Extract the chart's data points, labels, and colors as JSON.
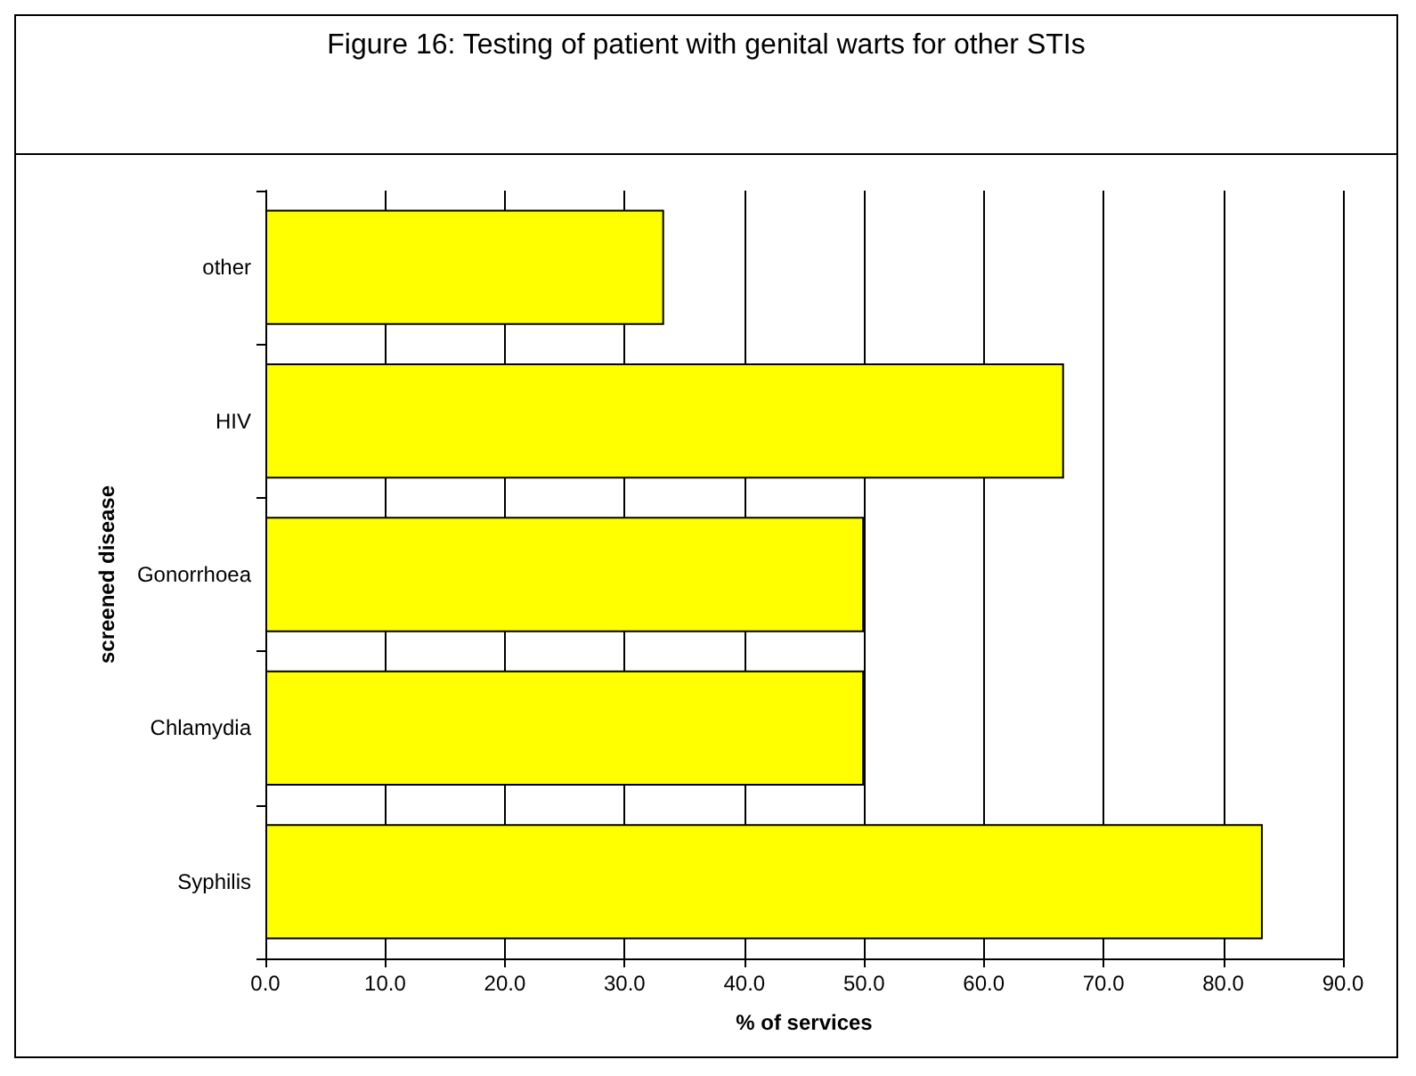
{
  "chart_data": {
    "type": "bar",
    "orientation": "horizontal",
    "title": "Figure 16: Testing of patient with genital warts for other STIs",
    "xlabel": "% of services",
    "ylabel": "screened disease",
    "categories": [
      "other",
      "HIV",
      "Gonorrhoea",
      "Chlamydia",
      "Syphilis"
    ],
    "values": [
      33.3,
      66.7,
      50.0,
      50.0,
      83.3
    ],
    "color": "#ffff00",
    "xlim": [
      0,
      90
    ],
    "xticks": [
      {
        "value": 0,
        "label": "0.0"
      },
      {
        "value": 10,
        "label": "10.0"
      },
      {
        "value": 20,
        "label": "20.0"
      },
      {
        "value": 30,
        "label": "30.0"
      },
      {
        "value": 40,
        "label": "40.0"
      },
      {
        "value": 50,
        "label": "50.0"
      },
      {
        "value": 60,
        "label": "60.0"
      },
      {
        "value": 70,
        "label": "70.0"
      },
      {
        "value": 80,
        "label": "80.0"
      },
      {
        "value": 90,
        "label": "90.0"
      }
    ],
    "grid": "x"
  }
}
